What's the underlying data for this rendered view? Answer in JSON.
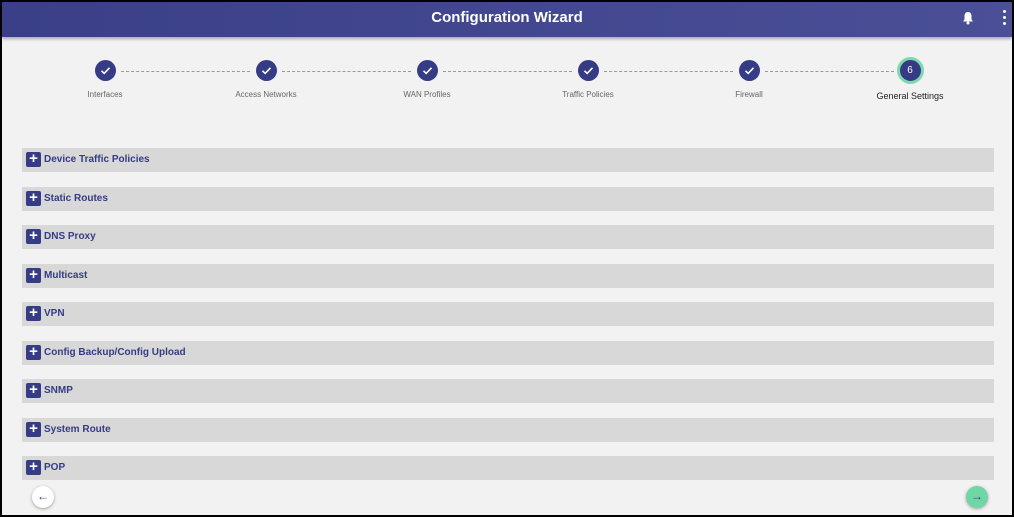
{
  "header": {
    "title": "Configuration Wizard",
    "icons": [
      "bell-icon",
      "more-vertical-icon"
    ]
  },
  "steps": [
    {
      "label": "Interfaces",
      "status": "completed"
    },
    {
      "label": "Access Networks",
      "status": "completed"
    },
    {
      "label": "WAN Profiles",
      "status": "completed"
    },
    {
      "label": "Traffic Policies",
      "status": "completed"
    },
    {
      "label": "Firewall",
      "status": "completed"
    },
    {
      "label": "General Settings",
      "number": "6",
      "status": "active"
    }
  ],
  "sections": [
    {
      "label": "Device Traffic Policies"
    },
    {
      "label": "Static Routes"
    },
    {
      "label": "DNS Proxy"
    },
    {
      "label": "Multicast"
    },
    {
      "label": "VPN"
    },
    {
      "label": "Config Backup/Config Upload"
    },
    {
      "label": "SNMP"
    },
    {
      "label": "System Route"
    },
    {
      "label": "POP"
    }
  ],
  "nav": {
    "back_icon": "←",
    "next_icon": "→"
  },
  "colors": {
    "primary": "#353b85",
    "accent": "#7fd9b0",
    "panel": "#d8d8d8"
  }
}
